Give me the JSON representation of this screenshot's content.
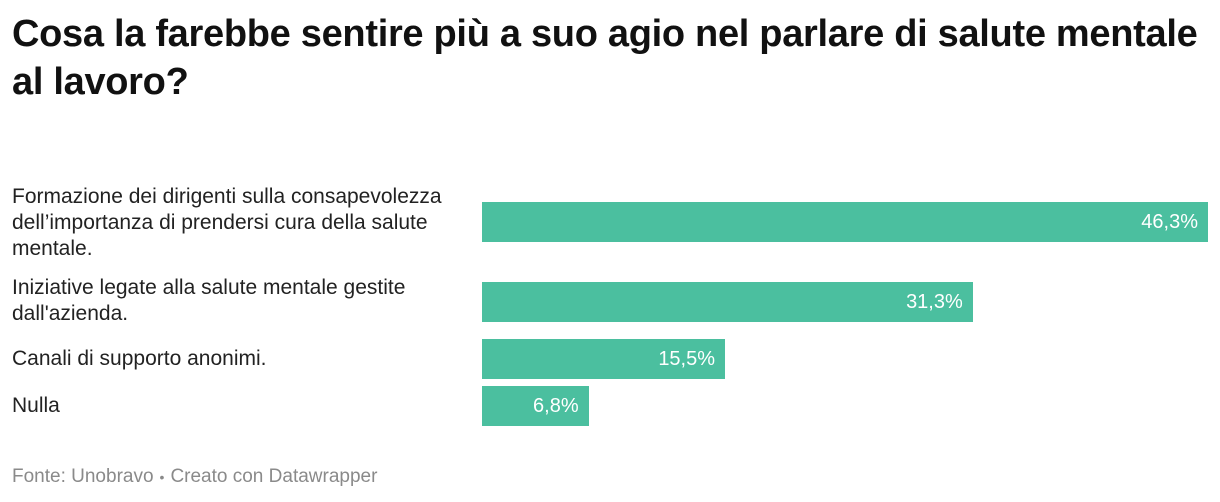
{
  "chart_data": {
    "type": "bar",
    "orientation": "horizontal",
    "title": "Cosa la farebbe sentire più a suo agio nel parlare di salute mentale al lavoro?",
    "categories": [
      "Formazione dei dirigenti sulla consapevolezza dell’importanza di prendersi cura della salute mentale.",
      "Iniziative legate alla salute mentale gestite dall'azienda.",
      "Canali di supporto anonimi.",
      "Nulla"
    ],
    "values": [
      46.3,
      31.3,
      15.5,
      6.8
    ],
    "value_labels": [
      "46,3%",
      "31,3%",
      "15,5%",
      "6,8%"
    ],
    "unit": "%",
    "xlim": [
      0,
      46.3
    ],
    "bar_color": "#4bbf9f",
    "grid": false,
    "legend": "none"
  },
  "footer": {
    "source": "Fonte: Unobravo",
    "separator": "•",
    "credit": "Creato con Datawrapper"
  }
}
